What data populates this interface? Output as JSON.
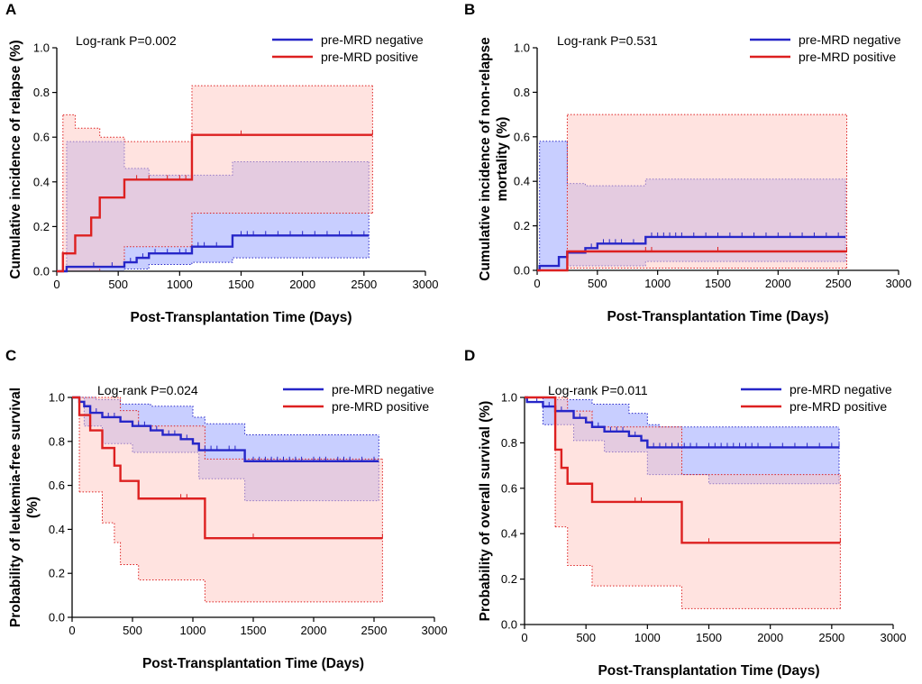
{
  "colors": {
    "negative": "#2626c8",
    "positive": "#dd2020",
    "negative_band": "#9aa6ff",
    "positive_band": "#ffc7c2"
  },
  "legend": {
    "negative": "pre-MRD negative",
    "positive": "pre-MRD positive"
  },
  "chart_data": [
    {
      "id": "A",
      "type": "line",
      "step": true,
      "panel_label": "A",
      "annotation": "Log-rank P=0.002",
      "xlabel": "Post-Transplantation Time (Days)",
      "ylabel": [
        "Cumulative incidence of relapse (%)"
      ],
      "xlim": [
        0,
        3000
      ],
      "ylim": [
        0,
        1.0
      ],
      "xticks": [
        0,
        500,
        1000,
        1500,
        2000,
        2500,
        3000
      ],
      "yticks": [
        0.0,
        0.2,
        0.4,
        0.6,
        0.8,
        1.0
      ],
      "xtick_labels": [
        "0",
        "500",
        "1000",
        "1500",
        "2000",
        "2500",
        "3000"
      ],
      "ytick_labels": [
        "0.0",
        "0.2",
        "0.4",
        "0.6",
        "0.8",
        "1.0"
      ],
      "series": [
        {
          "name": "pre-MRD negative",
          "key": "negative",
          "steps": [
            [
              0,
              0
            ],
            [
              80,
              0.02
            ],
            [
              550,
              0.04
            ],
            [
              650,
              0.06
            ],
            [
              750,
              0.08
            ],
            [
              1100,
              0.11
            ],
            [
              1430,
              0.16
            ],
            [
              2540,
              0.16
            ]
          ],
          "censor": [
            300,
            450,
            600,
            700,
            800,
            900,
            1000,
            1050,
            1150,
            1200,
            1300,
            1500,
            1550,
            1600,
            1700,
            1800,
            1900,
            2000,
            2100,
            2200,
            2300,
            2400,
            2500
          ],
          "ci_lower": [
            [
              80,
              0
            ],
            [
              550,
              0.01
            ],
            [
              750,
              0.03
            ],
            [
              1100,
              0.04
            ],
            [
              1430,
              0.06
            ],
            [
              2540,
              0.06
            ]
          ],
          "ci_upper": [
            [
              80,
              0.58
            ],
            [
              550,
              0.46
            ],
            [
              750,
              0.43
            ],
            [
              1100,
              0.43
            ],
            [
              1430,
              0.49
            ],
            [
              2540,
              0.49
            ]
          ]
        },
        {
          "name": "pre-MRD positive",
          "key": "positive",
          "steps": [
            [
              0,
              0
            ],
            [
              50,
              0.08
            ],
            [
              150,
              0.16
            ],
            [
              280,
              0.24
            ],
            [
              350,
              0.33
            ],
            [
              550,
              0.41
            ],
            [
              1100,
              0.61
            ],
            [
              2570,
              0.61
            ]
          ],
          "censor": [
            650,
            750,
            900,
            1000,
            1050,
            1500,
            2570
          ],
          "ci_lower": [
            [
              50,
              0
            ],
            [
              350,
              0.02
            ],
            [
              550,
              0.11
            ],
            [
              1100,
              0.26
            ],
            [
              2570,
              0.26
            ]
          ],
          "ci_upper": [
            [
              50,
              0.7
            ],
            [
              150,
              0.64
            ],
            [
              350,
              0.6
            ],
            [
              550,
              0.58
            ],
            [
              1100,
              0.83
            ],
            [
              2570,
              0.83
            ]
          ]
        }
      ]
    },
    {
      "id": "B",
      "type": "line",
      "step": true,
      "panel_label": "B",
      "annotation": "Log-rank P=0.531",
      "xlabel": "Post-Transplantation Time (Days)",
      "ylabel": [
        "Cumulative incidence of non-relapse",
        "mortality (%)"
      ],
      "xlim": [
        0,
        3000
      ],
      "ylim": [
        0,
        1.0
      ],
      "xticks": [
        0,
        500,
        1000,
        1500,
        2000,
        2500,
        3000
      ],
      "yticks": [
        0.0,
        0.2,
        0.4,
        0.6,
        0.8,
        1.0
      ],
      "xtick_labels": [
        "0",
        "500",
        "1000",
        "1500",
        "2000",
        "2500",
        "3000"
      ],
      "ytick_labels": [
        "0.0",
        "0.2",
        "0.4",
        "0.6",
        "0.8",
        "1.0"
      ],
      "series": [
        {
          "name": "pre-MRD negative",
          "key": "negative",
          "steps": [
            [
              0,
              0
            ],
            [
              20,
              0.02
            ],
            [
              180,
              0.06
            ],
            [
              250,
              0.08
            ],
            [
              400,
              0.1
            ],
            [
              500,
              0.12
            ],
            [
              900,
              0.15
            ],
            [
              2560,
              0.15
            ]
          ],
          "censor": [
            450,
            550,
            600,
            650,
            700,
            800,
            950,
            1000,
            1050,
            1100,
            1150,
            1200,
            1300,
            1400,
            1500,
            1600,
            1700,
            1800,
            1900,
            2000,
            2100,
            2200,
            2300,
            2400,
            2500
          ],
          "ci_lower": [
            [
              20,
              0
            ],
            [
              250,
              0.02
            ],
            [
              900,
              0.04
            ],
            [
              2560,
              0.04
            ]
          ],
          "ci_upper": [
            [
              20,
              0.58
            ],
            [
              250,
              0.39
            ],
            [
              400,
              0.38
            ],
            [
              900,
              0.41
            ],
            [
              2560,
              0.41
            ]
          ]
        },
        {
          "name": "pre-MRD positive",
          "key": "positive",
          "steps": [
            [
              0,
              0
            ],
            [
              250,
              0.085
            ],
            [
              2570,
              0.085
            ]
          ],
          "censor": [
            900,
            950,
            1500,
            2570
          ],
          "ci_lower": [
            [
              250,
              0.01
            ],
            [
              2570,
              0.01
            ]
          ],
          "ci_upper": [
            [
              250,
              0.7
            ],
            [
              2570,
              0.7
            ]
          ]
        }
      ]
    },
    {
      "id": "C",
      "type": "line",
      "step": true,
      "panel_label": "C",
      "annotation": "Log-rank P=0.024",
      "xlabel": "Post-Transplantation Time (Days)",
      "ylabel": [
        "Probability of leukemia-free survival",
        "(%)"
      ],
      "xlim": [
        0,
        3000
      ],
      "ylim": [
        0,
        1.0
      ],
      "xticks": [
        0,
        500,
        1000,
        1500,
        2000,
        2500,
        3000
      ],
      "yticks": [
        0.0,
        0.2,
        0.4,
        0.6,
        0.8,
        1.0
      ],
      "xtick_labels": [
        "0",
        "500",
        "1000",
        "1500",
        "2000",
        "2500",
        "3000"
      ],
      "ytick_labels": [
        "0.0",
        "0.2",
        "0.4",
        "0.6",
        "0.8",
        "1.0"
      ],
      "series": [
        {
          "name": "pre-MRD negative",
          "key": "negative",
          "steps": [
            [
              0,
              1.0
            ],
            [
              60,
              0.98
            ],
            [
              100,
              0.96
            ],
            [
              150,
              0.93
            ],
            [
              250,
              0.91
            ],
            [
              400,
              0.89
            ],
            [
              500,
              0.87
            ],
            [
              650,
              0.85
            ],
            [
              750,
              0.83
            ],
            [
              900,
              0.81
            ],
            [
              1000,
              0.79
            ],
            [
              1050,
              0.76
            ],
            [
              1430,
              0.71
            ],
            [
              2540,
              0.71
            ]
          ],
          "censor": [
            200,
            300,
            350,
            550,
            600,
            700,
            800,
            850,
            950,
            1100,
            1150,
            1200,
            1300,
            1350,
            1500,
            1550,
            1600,
            1650,
            1700,
            1750,
            1800,
            1850,
            1900,
            2000,
            2050,
            2100,
            2200,
            2250,
            2300,
            2400,
            2500
          ],
          "ci_lower": [
            [
              0,
              1.0
            ],
            [
              100,
              0.87
            ],
            [
              250,
              0.79
            ],
            [
              500,
              0.75
            ],
            [
              1050,
              0.63
            ],
            [
              1430,
              0.53
            ],
            [
              2540,
              0.53
            ]
          ],
          "ci_upper": [
            [
              0,
              1.0
            ],
            [
              100,
              1.0
            ],
            [
              200,
              0.99
            ],
            [
              400,
              0.97
            ],
            [
              650,
              0.96
            ],
            [
              1000,
              0.91
            ],
            [
              1100,
              0.88
            ],
            [
              1430,
              0.83
            ],
            [
              2540,
              0.83
            ]
          ]
        },
        {
          "name": "pre-MRD positive",
          "key": "positive",
          "steps": [
            [
              0,
              1.0
            ],
            [
              60,
              0.92
            ],
            [
              150,
              0.85
            ],
            [
              250,
              0.77
            ],
            [
              350,
              0.69
            ],
            [
              400,
              0.62
            ],
            [
              550,
              0.54
            ],
            [
              1100,
              0.36
            ],
            [
              2570,
              0.36
            ]
          ],
          "censor": [
            900,
            950,
            1500,
            2570
          ],
          "ci_lower": [
            [
              60,
              0.57
            ],
            [
              250,
              0.43
            ],
            [
              350,
              0.34
            ],
            [
              400,
              0.24
            ],
            [
              550,
              0.17
            ],
            [
              1100,
              0.07
            ],
            [
              2570,
              0.07
            ]
          ],
          "ci_upper": [
            [
              60,
              1.0
            ],
            [
              250,
              1.0
            ],
            [
              400,
              0.94
            ],
            [
              550,
              0.87
            ],
            [
              1100,
              0.72
            ],
            [
              2570,
              0.72
            ]
          ]
        }
      ]
    },
    {
      "id": "D",
      "type": "line",
      "step": true,
      "panel_label": "D",
      "annotation": "Log-rank P=0.011",
      "xlabel": "Post-Transplantation Time (Days)",
      "ylabel": [
        "Probability of overall survival (%)"
      ],
      "xlim": [
        0,
        3000
      ],
      "ylim": [
        0,
        1.0
      ],
      "xticks": [
        0,
        500,
        1000,
        1500,
        2000,
        2500,
        3000
      ],
      "yticks": [
        0.0,
        0.2,
        0.4,
        0.6,
        0.8,
        1.0
      ],
      "xtick_labels": [
        "0",
        "500",
        "1000",
        "1500",
        "2000",
        "2500",
        "3000"
      ],
      "ytick_labels": [
        "0.0",
        "0.2",
        "0.4",
        "0.6",
        "0.8",
        "1.0"
      ],
      "series": [
        {
          "name": "pre-MRD negative",
          "key": "negative",
          "steps": [
            [
              0,
              1.0
            ],
            [
              20,
              0.98
            ],
            [
              150,
              0.96
            ],
            [
              250,
              0.94
            ],
            [
              400,
              0.91
            ],
            [
              500,
              0.89
            ],
            [
              550,
              0.87
            ],
            [
              650,
              0.85
            ],
            [
              850,
              0.83
            ],
            [
              950,
              0.81
            ],
            [
              1000,
              0.78
            ],
            [
              2560,
              0.78
            ]
          ],
          "censor": [
            100,
            200,
            300,
            450,
            600,
            700,
            750,
            800,
            900,
            1050,
            1100,
            1150,
            1200,
            1250,
            1300,
            1350,
            1400,
            1500,
            1550,
            1600,
            1650,
            1700,
            1750,
            1800,
            1850,
            1900,
            2000,
            2100,
            2200,
            2300,
            2400,
            2500,
            2560
          ],
          "ci_lower": [
            [
              0,
              1.0
            ],
            [
              150,
              0.88
            ],
            [
              400,
              0.81
            ],
            [
              650,
              0.76
            ],
            [
              1000,
              0.66
            ],
            [
              1500,
              0.62
            ],
            [
              2560,
              0.62
            ]
          ],
          "ci_upper": [
            [
              0,
              1.0
            ],
            [
              150,
              1.0
            ],
            [
              250,
              0.99
            ],
            [
              550,
              0.97
            ],
            [
              850,
              0.93
            ],
            [
              1000,
              0.88
            ],
            [
              1100,
              0.87
            ],
            [
              2560,
              0.87
            ]
          ]
        },
        {
          "name": "pre-MRD positive",
          "key": "positive",
          "steps": [
            [
              0,
              1.0
            ],
            [
              250,
              0.77
            ],
            [
              300,
              0.69
            ],
            [
              350,
              0.62
            ],
            [
              550,
              0.54
            ],
            [
              1280,
              0.36
            ],
            [
              2570,
              0.36
            ]
          ],
          "censor": [
            900,
            950,
            1500,
            2570
          ],
          "ci_lower": [
            [
              250,
              0.43
            ],
            [
              350,
              0.26
            ],
            [
              550,
              0.17
            ],
            [
              1280,
              0.07
            ],
            [
              2570,
              0.07
            ]
          ],
          "ci_upper": [
            [
              250,
              1.0
            ],
            [
              350,
              0.94
            ],
            [
              550,
              0.87
            ],
            [
              1280,
              0.66
            ],
            [
              2570,
              0.66
            ]
          ]
        }
      ]
    }
  ]
}
